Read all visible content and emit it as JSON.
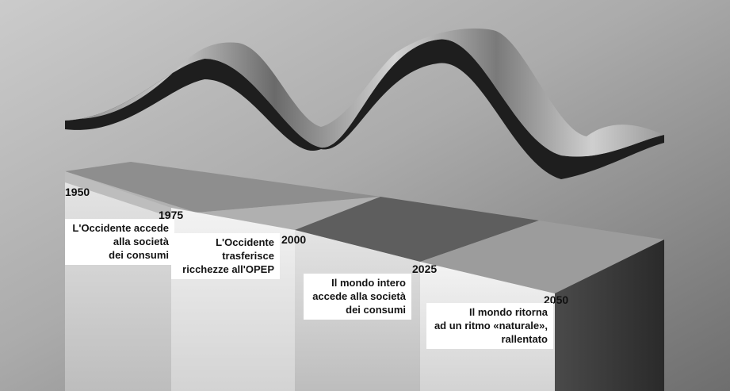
{
  "timeline": {
    "markers": [
      {
        "year": "1950"
      },
      {
        "year": "1975"
      },
      {
        "year": "2000"
      },
      {
        "year": "2025"
      },
      {
        "year": "2050"
      }
    ],
    "captions": [
      {
        "lines": [
          "L'Occidente accede",
          "alla società",
          "dei consumi"
        ]
      },
      {
        "lines": [
          "L'Occidente",
          "trasferisce",
          "ricchezze all'OPEP"
        ]
      },
      {
        "lines": [
          "Il mondo intero",
          "accede alla società",
          "dei consumi"
        ]
      },
      {
        "lines": [
          "Il mondo ritorna",
          "ad un ritmo «naturale»,",
          "rallentato"
        ]
      }
    ]
  }
}
